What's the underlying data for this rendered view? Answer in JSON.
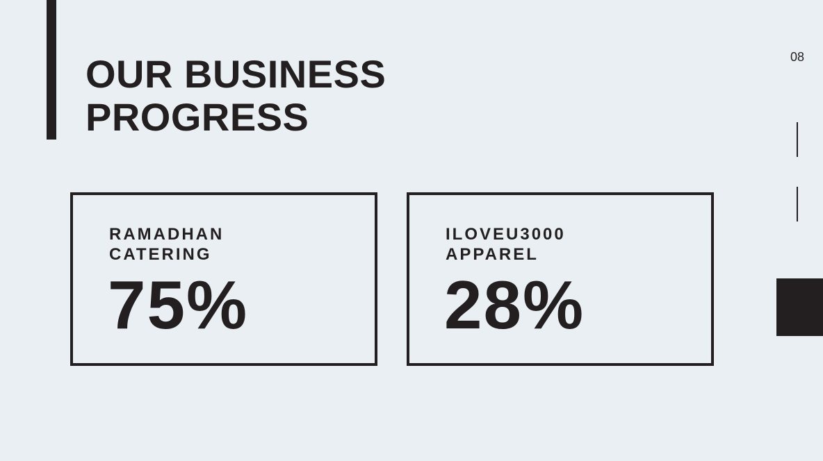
{
  "slide": {
    "title_lines": [
      "OUR BUSINESS",
      "PROGRESS"
    ],
    "page_number": "08",
    "colors": {
      "background": "#e9eff2",
      "ink": "#231f20"
    }
  },
  "cards": [
    {
      "label_lines": [
        "RAMADHAN",
        "CATERING"
      ],
      "value": "75%"
    },
    {
      "label_lines": [
        "ILOVEU3000",
        "APPAREL"
      ],
      "value": "28%"
    }
  ]
}
